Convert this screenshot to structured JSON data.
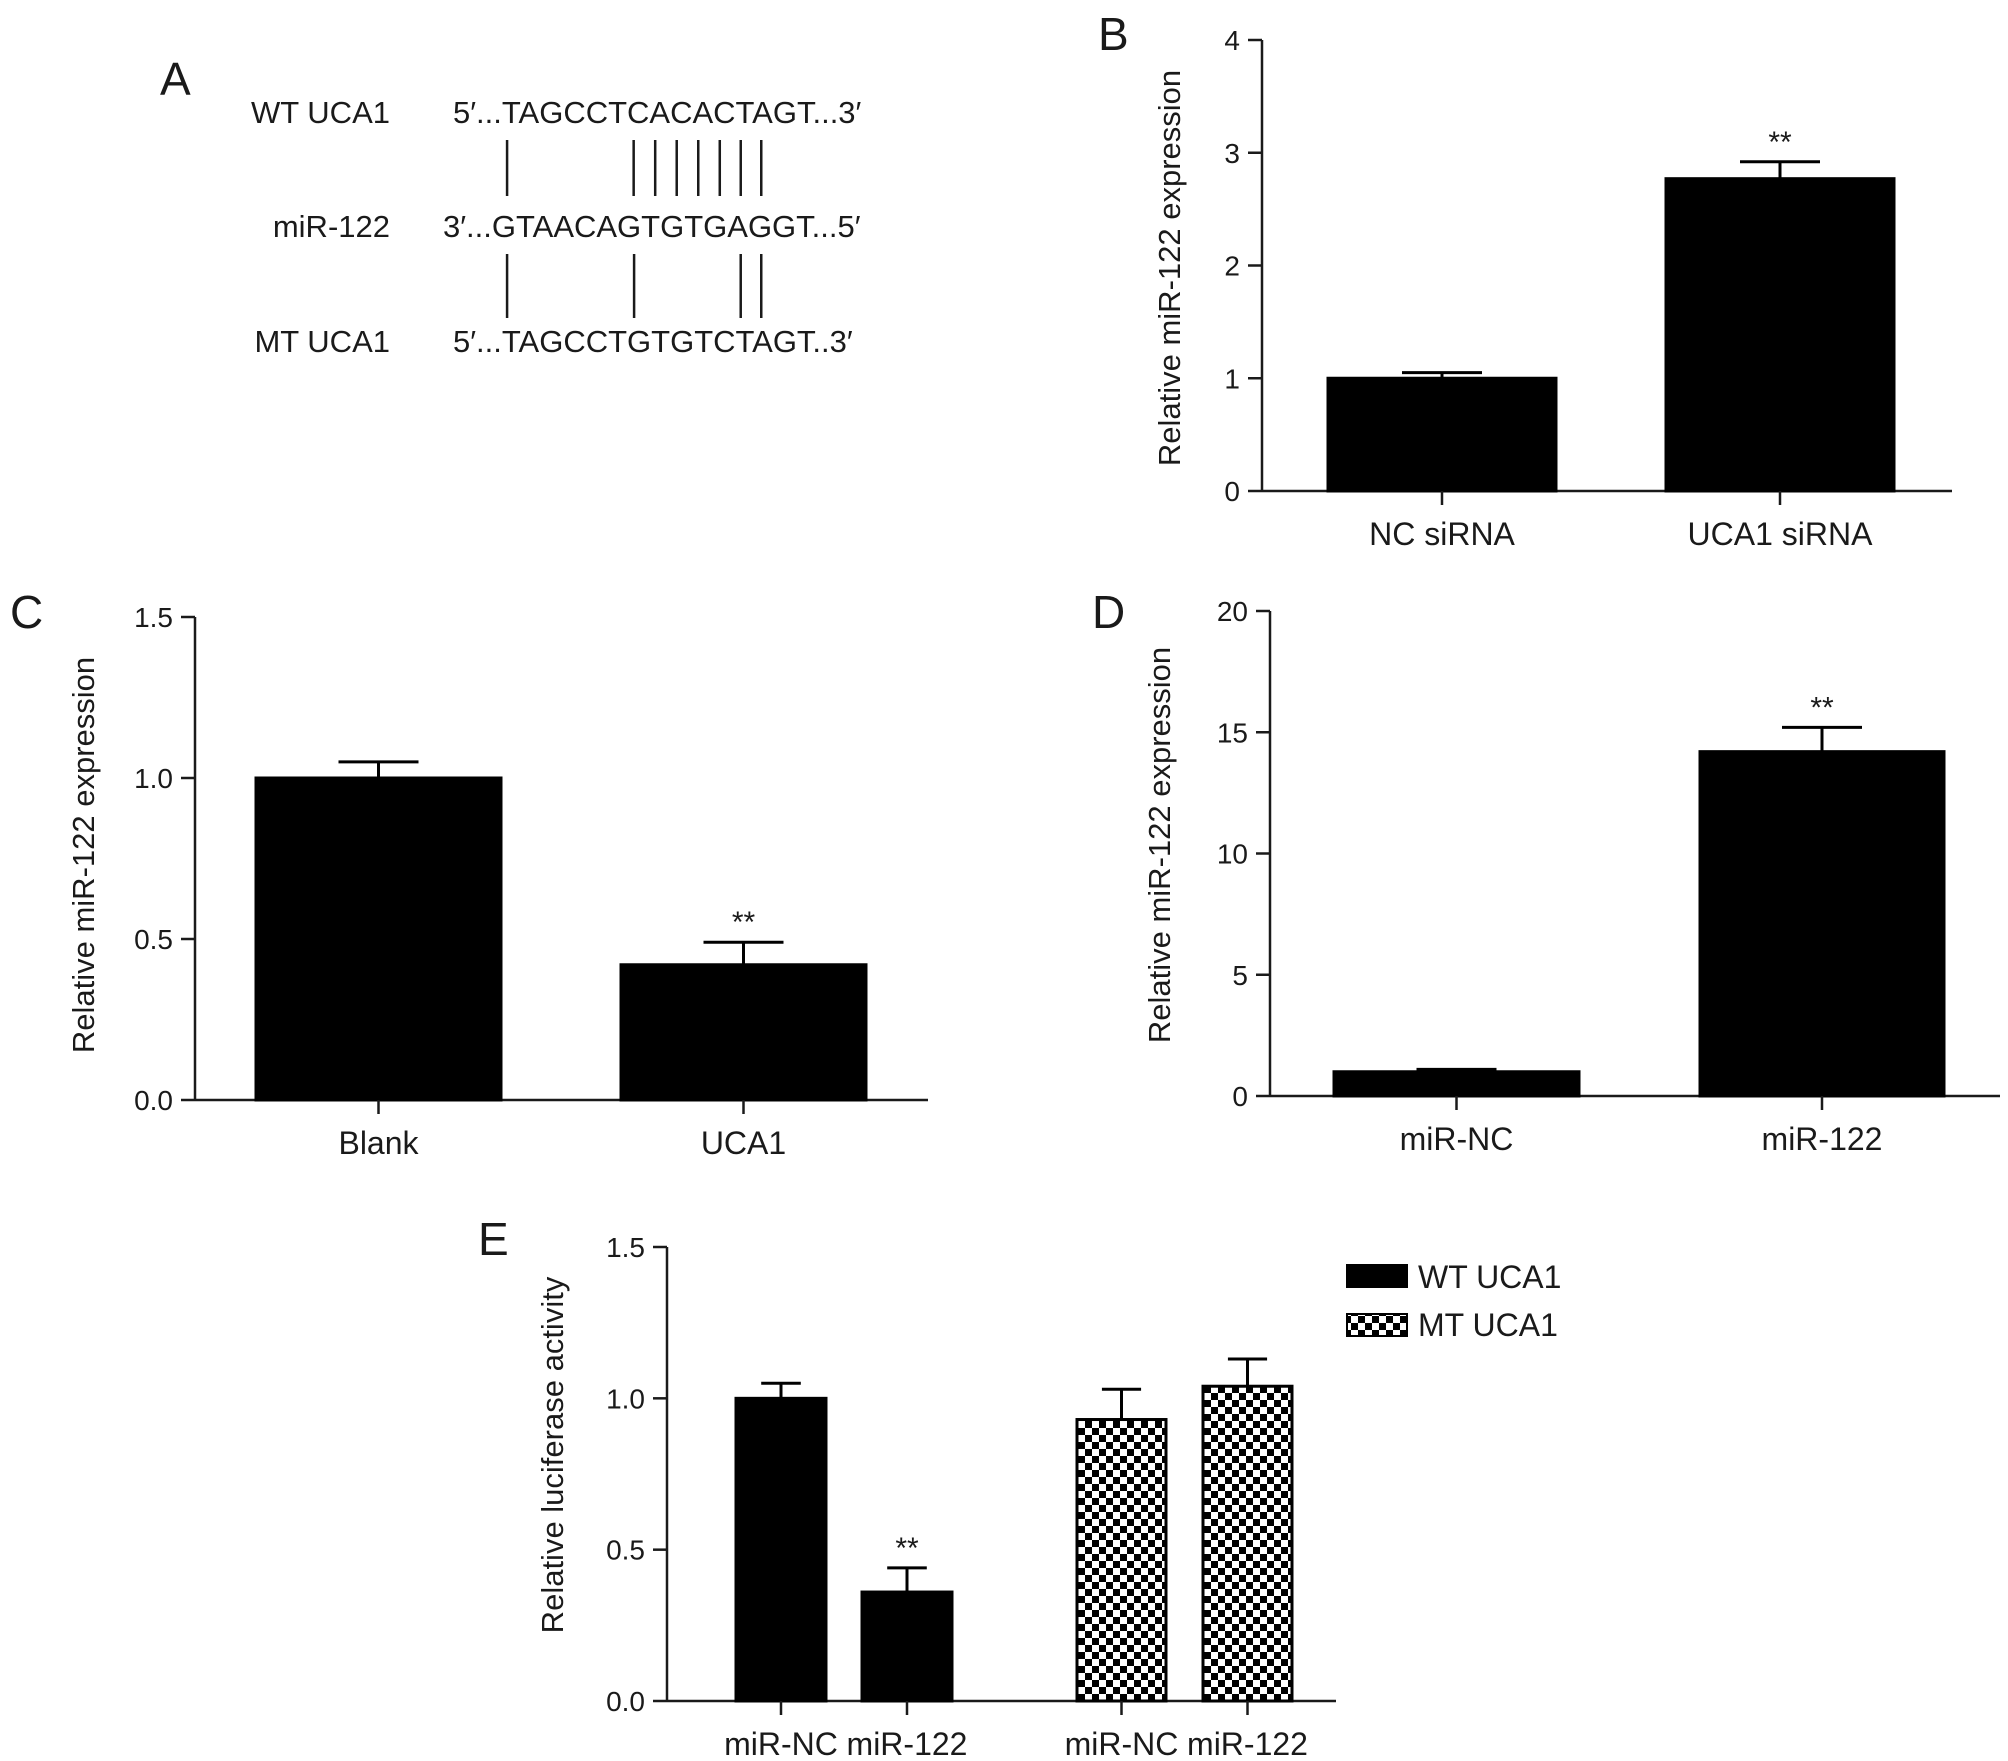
{
  "panel_labels": [
    "A",
    "B",
    "C",
    "D",
    "E"
  ],
  "sequences": {
    "rows": [
      {
        "label": "WT UCA1",
        "seq": "5′...TAGCCTCACACTAGT...3′"
      },
      {
        "label": "miR-122",
        "seq": "3′...GTAACAGTGTGAGGT...5′"
      },
      {
        "label": "MT UCA1",
        "seq": "5′...TAGCCTGTGTCTAGT..3′"
      }
    ],
    "pairing_wt_mir": [
      1,
      7,
      8,
      9,
      10,
      11,
      12,
      13
    ],
    "pairing_mir_mt": [
      1,
      7,
      12,
      13
    ]
  },
  "chart_data": [
    {
      "id": "B",
      "type": "bar",
      "categories": [
        "NC siRNA",
        "UCA1 siRNA"
      ],
      "values": [
        1.0,
        2.77
      ],
      "errors": [
        0.05,
        0.15
      ],
      "significance": [
        "",
        "**"
      ],
      "ylabel": "Relative miR-122 expression",
      "ylim": [
        0,
        4
      ],
      "yticks": [
        0,
        1,
        2,
        3,
        4
      ],
      "ytick_labels": [
        "0",
        "1",
        "2",
        "3",
        "4"
      ],
      "grid": false
    },
    {
      "id": "C",
      "type": "bar",
      "categories": [
        "Blank",
        "UCA1"
      ],
      "values": [
        1.0,
        0.42
      ],
      "errors": [
        0.05,
        0.07
      ],
      "significance": [
        "",
        "**"
      ],
      "ylabel": "Relative miR-122 expression",
      "ylim": [
        0,
        1.5
      ],
      "yticks": [
        0,
        0.5,
        1.0,
        1.5
      ],
      "ytick_labels": [
        "0.0",
        "0.5",
        "1.0",
        "1.5"
      ],
      "grid": false
    },
    {
      "id": "D",
      "type": "bar",
      "categories": [
        "miR-NC",
        "miR-122"
      ],
      "values": [
        1.0,
        14.2
      ],
      "errors": [
        0.1,
        1.0
      ],
      "significance": [
        "",
        "**"
      ],
      "ylabel": "Relative miR-122 expression",
      "ylim": [
        0,
        20
      ],
      "yticks": [
        0,
        5,
        10,
        15,
        20
      ],
      "ytick_labels": [
        "0",
        "5",
        "10",
        "15",
        "20"
      ],
      "grid": false
    },
    {
      "id": "E",
      "type": "bar",
      "categories": [
        "miR-NC",
        "miR-122",
        "miR-NC",
        "miR-122"
      ],
      "series": [
        {
          "name": "WT UCA1",
          "fill": "solid",
          "values": [
            1.0,
            0.36,
            null,
            null
          ],
          "errors": [
            0.05,
            0.08,
            null,
            null
          ],
          "significance": [
            "",
            "**",
            "",
            ""
          ]
        },
        {
          "name": "MT UCA1",
          "fill": "checker",
          "values": [
            null,
            null,
            0.93,
            1.04
          ],
          "errors": [
            null,
            null,
            0.1,
            0.09
          ],
          "significance": [
            "",
            "",
            "",
            ""
          ]
        }
      ],
      "ylabel": "Relative luciferase activity",
      "ylim": [
        0,
        1.5
      ],
      "yticks": [
        0,
        0.5,
        1.0,
        1.5
      ],
      "ytick_labels": [
        "0.0",
        "0.5",
        "1.0",
        "1.5"
      ],
      "legend_position": "top-right",
      "grid": false
    }
  ],
  "colors": {
    "bar": "#000000",
    "axis": "#1a1a1a",
    "text": "#1a1a1a",
    "background": "#ffffff"
  }
}
